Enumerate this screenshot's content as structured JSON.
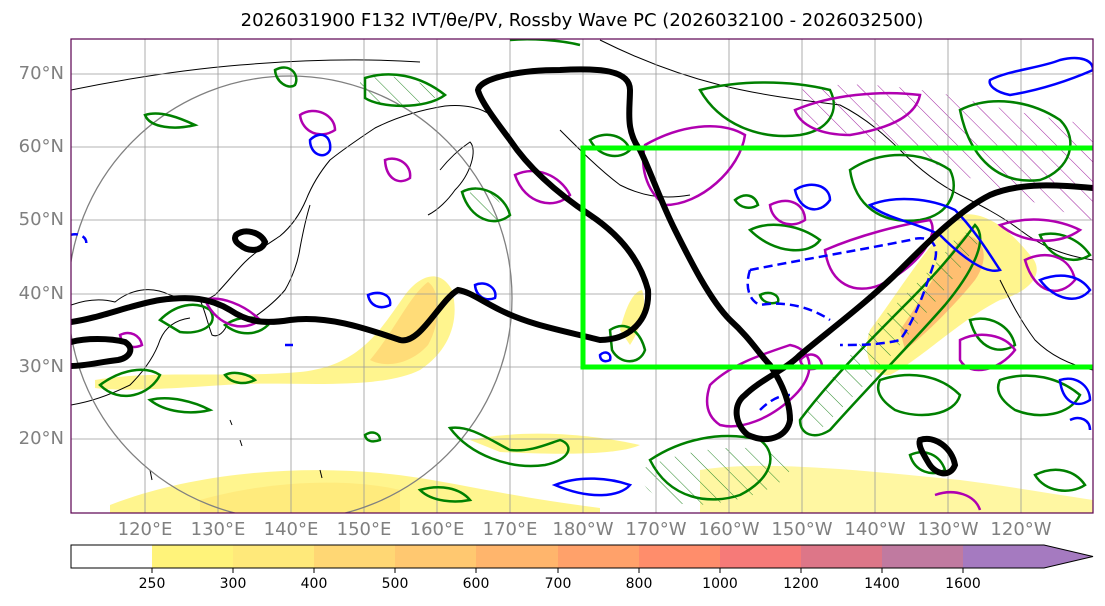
{
  "title": "2026031900 F132 IVT/θe/PV, Rossby Wave PC (2026032100 - 2026032500)",
  "map": {
    "lat_labels": [
      "70°N",
      "60°N",
      "50°N",
      "40°N",
      "30°N",
      "20°N"
    ],
    "lon_labels": [
      "120°E",
      "130°E",
      "140°E",
      "150°E",
      "160°E",
      "170°E",
      "180°W",
      "170°W",
      "160°W",
      "150°W",
      "140°W",
      "130°W",
      "120°W"
    ],
    "colors": {
      "ivt_fill": "#ffd24d",
      "positive_contour": "#008000",
      "negative_contour": "#0000ff",
      "theta_contour": "#b000b0",
      "pv_line": "#000000",
      "highlight_box": "#00ff00",
      "circle": "#808080"
    }
  },
  "colorbar": {
    "labels": [
      "250",
      "300",
      "400",
      "500",
      "600",
      "700",
      "800",
      "1000",
      "1200",
      "1400",
      "1600"
    ],
    "colors": [
      "#fff37a",
      "#ffe97a",
      "#ffd774",
      "#ffc870",
      "#ffb56c",
      "#ffa16a",
      "#ff8d6b",
      "#f67a78",
      "#dd7688",
      "#c07aa0",
      "#a57ac0"
    ]
  }
}
